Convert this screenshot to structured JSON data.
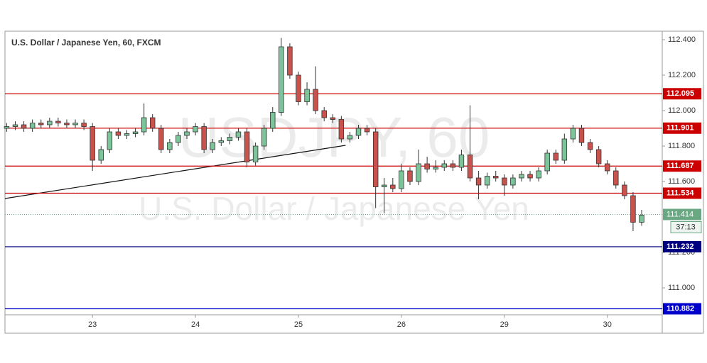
{
  "chart_data": {
    "type": "candlestick",
    "title": "U.S. Dollar / Japanese Yen, 60, FXCM",
    "watermark": "USDJPY, 60",
    "watermark_subtitle": "U.S. Dollar / Japanese Yen",
    "up_color": "#7cc49a",
    "down_color": "#c9524d",
    "open": [
      111.9,
      111.91,
      111.92,
      111.9,
      111.93,
      111.92,
      111.94,
      111.93,
      111.92,
      111.93,
      111.91,
      111.72,
      111.78,
      111.88,
      111.86,
      111.87,
      111.88,
      111.96,
      111.9,
      111.78,
      111.82,
      111.86,
      111.88,
      111.91,
      111.78,
      111.82,
      111.83,
      111.85,
      111.88,
      111.71,
      111.8,
      111.9,
      111.99,
      112.36,
      112.2,
      112.05,
      112.12,
      112.0,
      111.96,
      111.95,
      111.84,
      111.86,
      111.9,
      111.88,
      111.57,
      111.58,
      111.56,
      111.66,
      111.6,
      111.7,
      111.67,
      111.68,
      111.7,
      111.68,
      111.75,
      111.62,
      111.58,
      111.63,
      111.62,
      111.58,
      111.62,
      111.64,
      111.62,
      111.66,
      111.76,
      111.72,
      111.84,
      111.9,
      111.82,
      111.78,
      111.7,
      111.66,
      111.58,
      111.52,
      111.37
    ],
    "high": [
      111.93,
      111.94,
      111.94,
      111.95,
      111.95,
      111.96,
      111.96,
      111.95,
      111.95,
      111.95,
      111.93,
      111.8,
      111.9,
      111.9,
      111.89,
      111.9,
      112.04,
      111.98,
      111.92,
      111.84,
      111.88,
      111.9,
      111.93,
      111.93,
      111.84,
      111.85,
      111.87,
      111.9,
      111.9,
      111.82,
      111.92,
      112.02,
      112.41,
      112.38,
      112.22,
      112.16,
      112.25,
      112.02,
      111.98,
      111.97,
      111.88,
      111.92,
      111.92,
      111.9,
      111.62,
      111.62,
      111.7,
      111.68,
      111.78,
      111.74,
      111.72,
      111.72,
      111.72,
      111.78,
      112.03,
      111.66,
      111.65,
      111.66,
      111.64,
      111.64,
      111.66,
      111.66,
      111.68,
      111.78,
      111.78,
      111.87,
      111.92,
      111.92,
      111.84,
      111.8,
      111.72,
      111.68,
      111.6,
      111.54,
      111.44
    ],
    "low": [
      111.88,
      111.89,
      111.88,
      111.88,
      111.9,
      111.9,
      111.91,
      111.9,
      111.9,
      111.89,
      111.66,
      111.7,
      111.76,
      111.84,
      111.84,
      111.85,
      111.86,
      111.88,
      111.76,
      111.76,
      111.8,
      111.84,
      111.86,
      111.76,
      111.76,
      111.8,
      111.81,
      111.83,
      111.68,
      111.69,
      111.78,
      111.88,
      111.97,
      112.18,
      112.03,
      112.03,
      111.98,
      111.94,
      111.93,
      111.82,
      111.82,
      111.84,
      111.86,
      111.45,
      111.42,
      111.54,
      111.54,
      111.58,
      111.58,
      111.65,
      111.65,
      111.66,
      111.66,
      111.66,
      111.6,
      111.5,
      111.56,
      111.6,
      111.52,
      111.56,
      111.6,
      111.6,
      111.6,
      111.64,
      111.7,
      111.7,
      111.82,
      111.8,
      111.76,
      111.68,
      111.64,
      111.56,
      111.5,
      111.32,
      111.35
    ],
    "close": [
      111.91,
      111.92,
      111.9,
      111.93,
      111.92,
      111.94,
      111.93,
      111.92,
      111.93,
      111.91,
      111.72,
      111.78,
      111.88,
      111.86,
      111.87,
      111.88,
      111.96,
      111.9,
      111.78,
      111.82,
      111.86,
      111.88,
      111.91,
      111.78,
      111.82,
      111.83,
      111.85,
      111.88,
      111.71,
      111.8,
      111.9,
      111.99,
      112.36,
      112.2,
      112.05,
      112.12,
      112.0,
      111.96,
      111.95,
      111.84,
      111.86,
      111.9,
      111.88,
      111.57,
      111.58,
      111.56,
      111.66,
      111.6,
      111.7,
      111.67,
      111.68,
      111.7,
      111.68,
      111.75,
      111.62,
      111.58,
      111.63,
      111.62,
      111.58,
      111.62,
      111.64,
      111.62,
      111.66,
      111.76,
      111.72,
      111.84,
      111.9,
      111.82,
      111.78,
      111.7,
      111.66,
      111.58,
      111.52,
      111.37,
      111.41
    ],
    "xlim": [
      -0.2,
      76.4
    ],
    "xticks": [
      {
        "value": 10,
        "label": "23"
      },
      {
        "value": 22,
        "label": "24"
      },
      {
        "value": 34,
        "label": "25"
      },
      {
        "value": 46,
        "label": "26"
      },
      {
        "value": 58,
        "label": "29"
      },
      {
        "value": 70,
        "label": "30"
      }
    ],
    "ylim": [
      110.848,
      112.448
    ],
    "yticks": [
      {
        "value": 112.4,
        "label": "112.400"
      },
      {
        "value": 112.2,
        "label": "112.200"
      },
      {
        "value": 112.0,
        "label": "112.000"
      },
      {
        "value": 111.8,
        "label": "111.800"
      },
      {
        "value": 111.6,
        "label": "111.600"
      },
      {
        "value": 111.2,
        "label": "111.200"
      },
      {
        "value": 111.0,
        "label": "111.000"
      }
    ],
    "levels": [
      {
        "value": 112.095,
        "label": "112.095",
        "color": "#cc0000"
      },
      {
        "value": 111.901,
        "label": "111.901",
        "color": "#cc0000"
      },
      {
        "value": 111.687,
        "label": "111.687",
        "color": "#cc0000"
      },
      {
        "value": 111.534,
        "label": "111.534",
        "color": "#cc0000"
      },
      {
        "value": 111.232,
        "label": "111.232",
        "color": "#000080"
      },
      {
        "value": 110.882,
        "label": "110.882",
        "color": "#0000cc"
      }
    ],
    "current_price": {
      "value": 111.414,
      "label": "111.414",
      "countdown": "37:13",
      "color": "#6aa884"
    },
    "trendline": {
      "x": [
        -0.2,
        39.5
      ],
      "y": [
        111.504,
        111.804
      ]
    }
  }
}
